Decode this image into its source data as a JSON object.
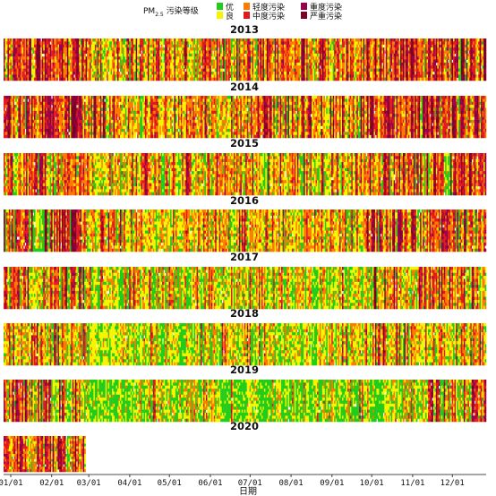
{
  "legend": {
    "title_main": "PM",
    "title_sub": "2.5",
    "title_rest": "污染等级",
    "levels": [
      {
        "label": "优",
        "color": "#22cc1a"
      },
      {
        "label": "良",
        "color": "#f5f500"
      },
      {
        "label": "轻度污染",
        "color": "#ff7a00"
      },
      {
        "label": "中度污染",
        "color": "#e31a1c"
      },
      {
        "label": "重度污染",
        "color": "#99004c"
      },
      {
        "label": "严重污染",
        "color": "#7a0026"
      }
    ]
  },
  "chart_data": {
    "type": "heatmap",
    "xlabel": "日期",
    "x_ticks": [
      "01/01",
      "02/01",
      "03/01",
      "04/01",
      "05/01",
      "06/01",
      "07/01",
      "08/01",
      "09/01",
      "10/01",
      "11/01",
      "12/01"
    ],
    "years": [
      {
        "year": "2013",
        "dominant": "heavy"
      },
      {
        "year": "2014",
        "dominant": "heavy"
      },
      {
        "year": "2015",
        "dominant": "moderate"
      },
      {
        "year": "2016",
        "dominant": "moderate"
      },
      {
        "year": "2017",
        "dominant": "mixed"
      },
      {
        "year": "2018",
        "dominant": "light"
      },
      {
        "year": "2019",
        "dominant": "clean"
      },
      {
        "year": "2020",
        "dominant": "partial",
        "months_shown": 2
      }
    ],
    "grid": false
  }
}
